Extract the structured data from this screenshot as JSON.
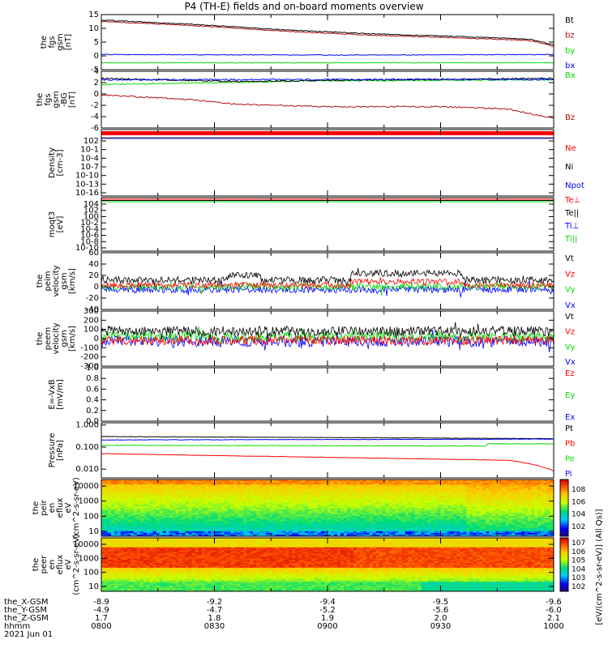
{
  "title": "P4 (TH-E) fields and on-board moments overview",
  "colors": {
    "black": "#000000",
    "red": "#ff0000",
    "darkred": "#b01010",
    "green": "#00dd00",
    "blue": "#0000ff"
  },
  "chart_data": [
    {
      "type": "line",
      "ylabel": "the fgs gsm [nT]",
      "ylim": [
        -5,
        15
      ],
      "yticks": [
        "15",
        "10",
        "5",
        "0",
        "-5"
      ],
      "series": [
        {
          "name": "Bt",
          "color": "black",
          "x": [
            0,
            0.2,
            0.4,
            0.6,
            0.8,
            0.95,
            1
          ],
          "y": [
            13,
            11.5,
            9.5,
            8,
            7,
            6,
            4
          ]
        },
        {
          "name": "bz",
          "color": "darkred",
          "x": [
            0,
            0.2,
            0.4,
            0.6,
            0.8,
            0.95,
            1
          ],
          "y": [
            12.5,
            11,
            9,
            7.5,
            6.5,
            5.5,
            3.5
          ]
        },
        {
          "name": "by",
          "color": "green",
          "x": [
            0,
            0.5,
            1
          ],
          "y": [
            -2.5,
            -2.5,
            -2.5
          ]
        },
        {
          "name": "bx",
          "color": "blue",
          "x": [
            0,
            0.5,
            1
          ],
          "y": [
            0.5,
            0.3,
            0.5
          ]
        }
      ]
    },
    {
      "type": "line",
      "ylabel": "the fgs gsm -BG [nT]",
      "ylim": [
        -7,
        5
      ],
      "yticks": [
        "4",
        "2",
        "0",
        "-2",
        "-4",
        "-6"
      ],
      "series": [
        {
          "name": "Bx",
          "color": "green",
          "x": [
            0,
            0.5,
            1
          ],
          "y": [
            2.2,
            3,
            3.2
          ]
        },
        {
          "name": "",
          "color": "black",
          "x": [
            0,
            0.3,
            0.6,
            1
          ],
          "y": [
            3.5,
            2.8,
            3.2,
            3.5
          ]
        },
        {
          "name": "",
          "color": "blue",
          "x": [
            0,
            1
          ],
          "y": [
            3.2,
            3.3
          ]
        },
        {
          "name": "Bz",
          "color": "darkred",
          "x": [
            0,
            0.1,
            0.2,
            0.3,
            0.5,
            0.75,
            0.9,
            1
          ],
          "y": [
            0,
            -0.5,
            -1,
            -2,
            -2.5,
            -2.5,
            -3,
            -5
          ]
        }
      ]
    },
    {
      "type": "line",
      "ylabel": "Density [cm-3]",
      "yticks": [
        "10^2",
        "10^-1",
        "10^-4",
        "10^-7",
        "10^-10",
        "10^-13",
        "10^-16"
      ],
      "series": [
        {
          "name": "Ne",
          "color": "red"
        },
        {
          "name": "Ni",
          "color": "black"
        },
        {
          "name": "Npot",
          "color": "blue"
        }
      ]
    },
    {
      "type": "line",
      "ylabel": "moqt3 [eV]",
      "yticks": [
        "10^4",
        "10^2",
        "10^0",
        "10^-2",
        "10^-4",
        "10^-6",
        "10^-8",
        "10^-10"
      ],
      "series": [
        {
          "name": "Te⊥",
          "color": "red"
        },
        {
          "name": "Te||",
          "color": "black"
        },
        {
          "name": "Ti⊥",
          "color": "blue"
        },
        {
          "name": "Ti||",
          "color": "green"
        }
      ]
    },
    {
      "type": "line",
      "ylabel": "the peim velocity gsm [km/s]",
      "ylim": [
        -40,
        60
      ],
      "yticks": [
        "60",
        "40",
        "20",
        "0",
        "-20",
        "-40"
      ],
      "series": [
        {
          "name": "Vt",
          "color": "black"
        },
        {
          "name": "Vz",
          "color": "red"
        },
        {
          "name": "Vy",
          "color": "green"
        },
        {
          "name": "Vx",
          "color": "blue"
        }
      ]
    },
    {
      "type": "line",
      "ylabel": "the peem velocity gsm [km/s]",
      "ylim": [
        -300,
        300
      ],
      "yticks": [
        "300",
        "200",
        "100",
        "0",
        "-100",
        "-200",
        "-300"
      ],
      "series": [
        {
          "name": "Vt",
          "color": "black"
        },
        {
          "name": "Vz",
          "color": "red"
        },
        {
          "name": "Vy",
          "color": "green"
        },
        {
          "name": "Vx",
          "color": "blue"
        }
      ]
    },
    {
      "type": "line",
      "ylabel": "E=-VxB [mV/m]",
      "ylim": [
        0,
        1
      ],
      "yticks": [
        "1.0",
        "0.8",
        "0.6",
        "0.4",
        "0.2",
        "0.0"
      ],
      "series": [
        {
          "name": "Ez",
          "color": "red"
        },
        {
          "name": "Ey",
          "color": "green"
        },
        {
          "name": "Ex",
          "color": "blue"
        }
      ]
    },
    {
      "type": "line",
      "ylabel": "Pressure [nPa]",
      "yticks": [
        "1.000",
        "0.100",
        "0.010"
      ],
      "series": [
        {
          "name": "Pt",
          "color": "black"
        },
        {
          "name": "Pb",
          "color": "red"
        },
        {
          "name": "Pe",
          "color": "green"
        },
        {
          "name": "Pi",
          "color": "blue"
        }
      ]
    },
    {
      "type": "heatmap",
      "ylabel": "the peir en eflux eV (cm^2-s-sr-eV)",
      "yticks": [
        "10000",
        "1000",
        "100",
        "10"
      ],
      "colorbar_ticks": [
        "10^8",
        "10^6",
        "10^4",
        "10^2"
      ],
      "colorbar_label": "[eV/(cm^2-s-sr-eV)] (All Qs)]"
    },
    {
      "type": "heatmap",
      "ylabel": "the peer en eflux eV (cm^2-s-sr-eV)",
      "yticks": [
        "10000",
        "1000",
        "100",
        "10"
      ],
      "colorbar_ticks": [
        "10^7",
        "10^6",
        "10^5",
        "10^4",
        "10^3",
        "10^2"
      ]
    }
  ],
  "xaxis": {
    "row_labels": [
      "the_X-GSM",
      "the_Y-GSM",
      "the_Z-GSM",
      "hhmm",
      "2021 Jun 01"
    ],
    "columns": [
      {
        "x": -8.9,
        "y": -4.9,
        "z": 1.7,
        "time": "0800"
      },
      {
        "x": -9.2,
        "y": -4.7,
        "z": 1.8,
        "time": "0830"
      },
      {
        "x": -9.4,
        "y": -5.2,
        "z": 1.9,
        "time": "0900"
      },
      {
        "x": -9.5,
        "y": -5.6,
        "z": 2.0,
        "time": "0930"
      },
      {
        "x": -9.6,
        "y": -6.0,
        "z": 2.1,
        "time": "1000"
      }
    ]
  }
}
